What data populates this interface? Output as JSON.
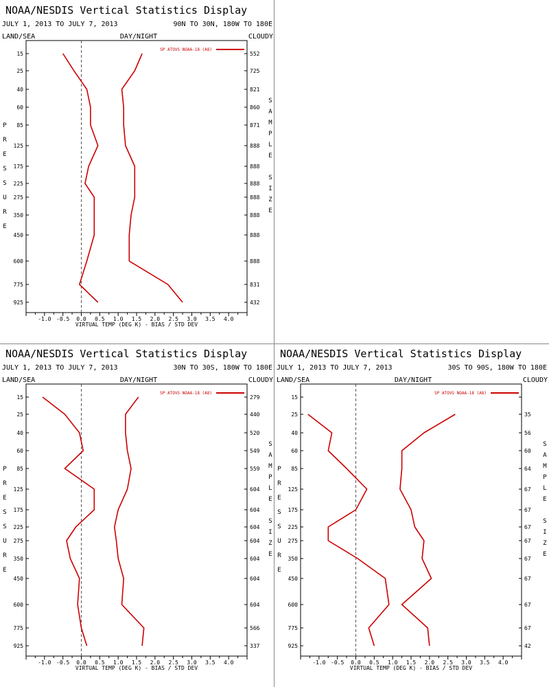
{
  "accent_color": "#cc0000",
  "panels": [
    {
      "title": "NOAA/NESDIS Vertical Statistics Display",
      "date_range": "JULY 1, 2013 TO JULY 7, 2013",
      "region": "90N TO 30N, 180W TO 180E",
      "land_sea": "LAND/SEA",
      "day_night": "DAY/NIGHT",
      "cloud": "CLOUDY",
      "legend": "SP ATOVS NOAA-18 (A8)",
      "y_axis_letters": [
        "P",
        "R",
        "E",
        "S",
        "S",
        "U",
        "R",
        "E"
      ],
      "sample_letters": [
        "S",
        "A",
        "M",
        "P",
        "L",
        "E",
        "",
        "S",
        "I",
        "Z",
        "E"
      ],
      "chart_data": {
        "type": "line",
        "xlabel": "VIRTUAL TEMP (DEG K) - BIAS / STD DEV",
        "xlim": [
          -1.5,
          4.5
        ],
        "x_ticks": [
          "-1.0",
          "-0.5",
          "0.0",
          "0.5",
          "1.0",
          "1.5",
          "2.0",
          "2.5",
          "3.0",
          "3.5",
          "4.0"
        ],
        "pressure_levels": [
          "15",
          "25",
          "40",
          "60",
          "85",
          "125",
          "175",
          "225",
          "275",
          "350",
          "450",
          "600",
          "775",
          "925"
        ],
        "sample_size": [
          "552",
          "725",
          "821",
          "860",
          "871",
          "888",
          "888",
          "888",
          "888",
          "888",
          "888",
          "888",
          "831",
          "432"
        ],
        "series": [
          {
            "values": [
              -0.5,
              -0.2,
              0.15,
              0.25,
              0.25,
              0.45,
              0.2,
              0.1,
              0.35,
              0.35,
              0.35,
              0.15,
              -0.05,
              0.45
            ]
          },
          {
            "values": [
              1.65,
              1.45,
              1.1,
              1.15,
              1.15,
              1.2,
              1.45,
              1.45,
              1.45,
              1.35,
              1.3,
              1.3,
              2.35,
              2.75
            ]
          }
        ]
      }
    },
    {
      "title": "NOAA/NESDIS Vertical Statistics Display",
      "date_range": "JULY 1, 2013 TO JULY 7, 2013",
      "region": "30N TO 30S, 180W TO 180E",
      "land_sea": "LAND/SEA",
      "day_night": "DAY/NIGHT",
      "cloud": "CLOUDY",
      "legend": "SP ATOVS NOAA-18 (A8)",
      "y_axis_letters": [
        "P",
        "R",
        "E",
        "S",
        "S",
        "U",
        "R",
        "E"
      ],
      "sample_letters": [
        "S",
        "A",
        "M",
        "P",
        "L",
        "E",
        "",
        "S",
        "I",
        "Z",
        "E"
      ],
      "chart_data": {
        "type": "line",
        "xlabel": "VIRTUAL TEMP (DEG K) - BIAS / STD DEV",
        "xlim": [
          -1.5,
          4.5
        ],
        "x_ticks": [
          "-1.0",
          "-0.5",
          "0.0",
          "0.5",
          "1.0",
          "1.5",
          "2.0",
          "2.5",
          "3.0",
          "3.5",
          "4.0"
        ],
        "pressure_levels": [
          "15",
          "25",
          "40",
          "60",
          "85",
          "125",
          "175",
          "225",
          "275",
          "350",
          "450",
          "600",
          "775",
          "925"
        ],
        "sample_size": [
          "279",
          "440",
          "520",
          "549",
          "559",
          "604",
          "604",
          "604",
          "604",
          "604",
          "604",
          "604",
          "566",
          "337"
        ],
        "series": [
          {
            "values": [
              -1.05,
              -0.45,
              -0.05,
              0.05,
              -0.45,
              0.35,
              0.35,
              -0.15,
              -0.4,
              -0.3,
              -0.05,
              -0.1,
              0.0,
              0.15
            ]
          },
          {
            "values": [
              1.55,
              1.2,
              1.2,
              1.25,
              1.35,
              1.25,
              1.0,
              0.9,
              0.95,
              1.0,
              1.15,
              1.1,
              1.7,
              1.65
            ]
          }
        ]
      }
    },
    {
      "title": "NOAA/NESDIS Vertical Statistics Display",
      "date_range": "JULY 1, 2013 TO JULY 7, 2013",
      "region": "30S TO 90S, 180W TO 180E",
      "land_sea": "LAND/SEA",
      "day_night": "DAY/NIGHT",
      "cloud": "CLOUDY",
      "legend": "SP ATOVS NOAA-18 (A8)",
      "y_axis_letters": [
        "P",
        "R",
        "E",
        "S",
        "S",
        "U",
        "R",
        "E"
      ],
      "sample_letters": [
        "S",
        "A",
        "M",
        "P",
        "L",
        "E",
        "",
        "S",
        "I",
        "Z",
        "E"
      ],
      "chart_data": {
        "type": "line",
        "xlabel": "VIRTUAL TEMP (DEG K) - BIAS / STD DEV",
        "xlim": [
          -1.5,
          4.5
        ],
        "x_ticks": [
          "-1.0",
          "-0.5",
          "0.0",
          "0.5",
          "1.0",
          "1.5",
          "2.0",
          "2.5",
          "3.0",
          "3.5",
          "4.0"
        ],
        "pressure_levels": [
          "15",
          "25",
          "40",
          "60",
          "85",
          "125",
          "175",
          "225",
          "275",
          "350",
          "450",
          "600",
          "775",
          "925"
        ],
        "sample_size": [
          "",
          "35",
          "56",
          "60",
          "64",
          "67",
          "67",
          "67",
          "67",
          "67",
          "67",
          "67",
          "67",
          "42"
        ],
        "series": [
          {
            "values": [
              null,
              -1.3,
              -0.65,
              -0.75,
              -0.25,
              0.3,
              0.0,
              -0.75,
              -0.75,
              0.05,
              0.8,
              0.9,
              0.35,
              0.5
            ]
          },
          {
            "values": [
              null,
              2.7,
              1.85,
              1.25,
              1.25,
              1.2,
              1.5,
              1.6,
              1.85,
              1.8,
              2.05,
              1.25,
              1.95,
              2.0
            ]
          }
        ]
      }
    }
  ]
}
